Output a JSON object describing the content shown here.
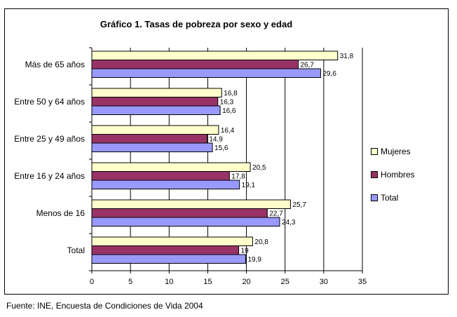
{
  "chart_data": {
    "type": "bar",
    "orientation": "horizontal",
    "title": "Gráfico 1. Tasas de pobreza por sexo y edad",
    "categories": [
      "Más de 65 años",
      "Entre 50 y 64 años",
      "Entre 25 y 49 años",
      "Entre 16 y 24 años",
      "Menos de 16",
      "Total"
    ],
    "series": [
      {
        "name": "Mujeres",
        "color": "#FFFFCC",
        "values": [
          31.8,
          16.8,
          16.4,
          20.5,
          25.7,
          20.8
        ],
        "labels": [
          "31,8",
          "16,8",
          "16,4",
          "20,5",
          "25,7",
          "20,8"
        ]
      },
      {
        "name": "Hombres",
        "color": "#993366",
        "values": [
          26.7,
          16.3,
          14.9,
          17.8,
          22.7,
          19
        ],
        "labels": [
          "26,7",
          "16,3",
          "14,9",
          "17,8",
          "22,7",
          "19"
        ]
      },
      {
        "name": "Total",
        "color": "#9999FF",
        "values": [
          29.6,
          16.6,
          15.6,
          19.1,
          24.3,
          19.9
        ],
        "labels": [
          "29,6",
          "16,6",
          "15,6",
          "19,1",
          "24,3",
          "19,9"
        ]
      }
    ],
    "xlim": [
      0,
      35
    ],
    "xticks": [
      0,
      5,
      10,
      15,
      20,
      25,
      30,
      35
    ],
    "xlabel": "",
    "ylabel": "",
    "grid": "vertical",
    "legend_position": "right"
  },
  "source": "Fuente: INE, Encuesta de Condiciones de Vida 2004"
}
